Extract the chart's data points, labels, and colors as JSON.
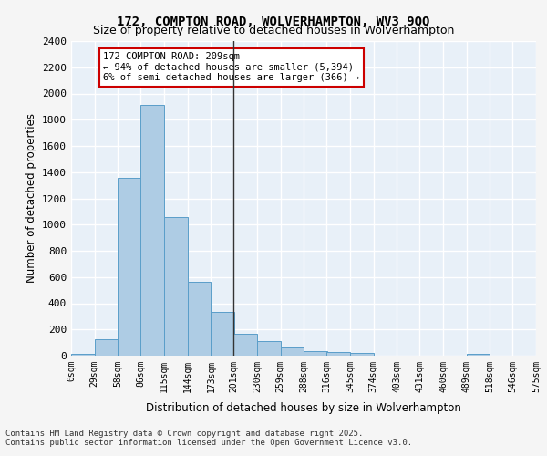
{
  "title_line1": "172, COMPTON ROAD, WOLVERHAMPTON, WV3 9QQ",
  "title_line2": "Size of property relative to detached houses in Wolverhampton",
  "xlabel": "Distribution of detached houses by size in Wolverhampton",
  "ylabel": "Number of detached properties",
  "footer_line1": "Contains HM Land Registry data © Crown copyright and database right 2025.",
  "footer_line2": "Contains public sector information licensed under the Open Government Licence v3.0.",
  "bar_color": "#aecce4",
  "bar_edge_color": "#5a9ec9",
  "background_color": "#e8f0f8",
  "grid_color": "#ffffff",
  "annotation_text": "172 COMPTON ROAD: 209sqm\n← 94% of detached houses are smaller (5,394)\n6% of semi-detached houses are larger (366) →",
  "annotation_box_color": "#ffffff",
  "annotation_border_color": "#cc0000",
  "vline_x_index": 6,
  "property_size_sqm": 209,
  "bin_edges": [
    0,
    29,
    58,
    86,
    115,
    144,
    173,
    201,
    230,
    259,
    288,
    316,
    345,
    374,
    403,
    431,
    460,
    489,
    518,
    546,
    575
  ],
  "bin_labels": [
    "0sqm",
    "29sqm",
    "58sqm",
    "86sqm",
    "115sqm",
    "144sqm",
    "173sqm",
    "201sqm",
    "230sqm",
    "259sqm",
    "288sqm",
    "316sqm",
    "345sqm",
    "374sqm",
    "403sqm",
    "431sqm",
    "460sqm",
    "489sqm",
    "518sqm",
    "546sqm",
    "575sqm"
  ],
  "bar_heights": [
    15,
    125,
    1360,
    1910,
    1055,
    565,
    335,
    165,
    110,
    60,
    35,
    30,
    20,
    0,
    0,
    0,
    0,
    15,
    0,
    0,
    10
  ],
  "ylim": [
    0,
    2400
  ],
  "yticks": [
    0,
    200,
    400,
    600,
    800,
    1000,
    1200,
    1400,
    1600,
    1800,
    2000,
    2200,
    2400
  ]
}
